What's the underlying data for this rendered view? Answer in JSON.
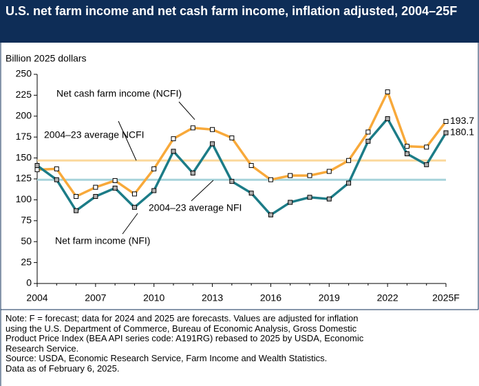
{
  "chart_data": {
    "type": "line",
    "title": "U.S. net farm income and net cash farm income, inflation adjusted, 2004–25F",
    "y_label": "Billion 2025 dollars",
    "x": [
      2004,
      2005,
      2006,
      2007,
      2008,
      2009,
      2010,
      2011,
      2012,
      2013,
      2014,
      2015,
      2016,
      2017,
      2018,
      2019,
      2020,
      2021,
      2022,
      2023,
      2024,
      2025
    ],
    "series": [
      {
        "name": "Net cash farm income (NCFI)",
        "color": "#f8a93a",
        "marker_fill": "#ffffff",
        "values": [
          136,
          137,
          104,
          115,
          123,
          107,
          137,
          173,
          186,
          184,
          174,
          141,
          124,
          129,
          129,
          134,
          147,
          181,
          229,
          164,
          163,
          193.7
        ]
      },
      {
        "name": "Net farm income (NFI)",
        "color": "#1c7c87",
        "marker_fill": "#b0b0b0",
        "values": [
          141,
          124,
          87,
          104,
          114,
          91,
          111,
          158,
          132,
          167,
          122,
          108,
          82,
          97,
          103,
          101,
          120,
          170,
          197,
          155,
          142,
          180.1
        ]
      }
    ],
    "reference_lines": [
      {
        "label": "2004–23 average NCFI",
        "value": 147,
        "color": "#fbd89c"
      },
      {
        "label": "2004–23 average NFI",
        "value": 124,
        "color": "#a6d3da"
      }
    ],
    "xlim": [
      2004,
      2025
    ],
    "xticks": [
      2004,
      2007,
      2010,
      2013,
      2016,
      2019,
      2022,
      {
        "value": 2025,
        "label": "2025F"
      }
    ],
    "ylim": [
      0,
      250
    ],
    "yticks": [
      0,
      25,
      50,
      75,
      100,
      125,
      150,
      175,
      200,
      225,
      250
    ],
    "notes": [
      "Note: F = forecast; data for 2024 and 2025 are forecasts. Values are adjusted for inflation",
      "using the U.S. Department of Commerce, Bureau of Economic Analysis, Gross Domestic",
      "Product Price Index (BEA API series code: A191RG) rebased to 2025 by USDA, Economic",
      "Research Service.",
      "Source: USDA, Economic Research Service, Farm Income and Wealth Statistics.",
      "Data as of February 6, 2025."
    ]
  }
}
